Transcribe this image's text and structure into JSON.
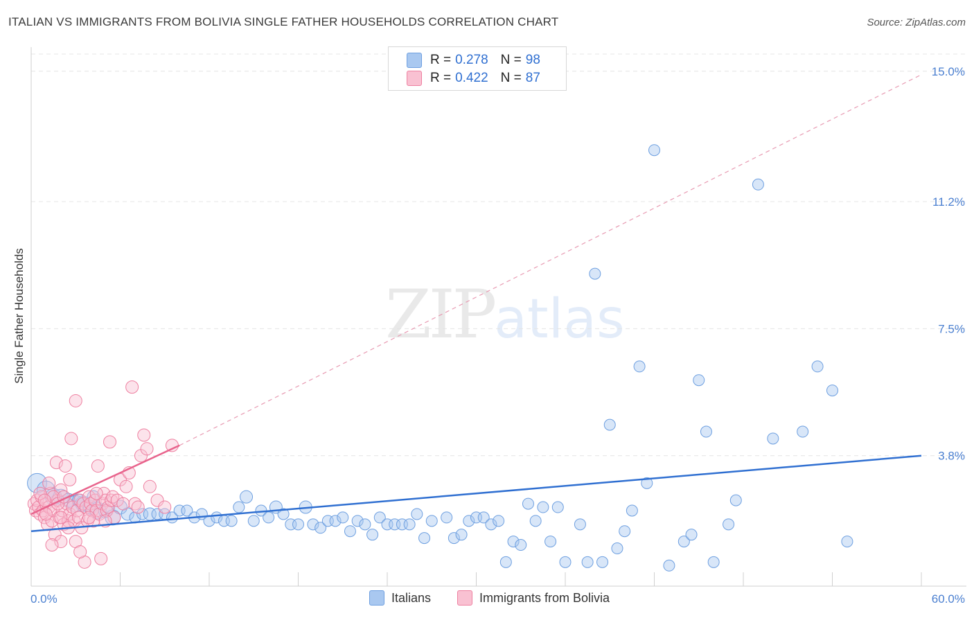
{
  "chart_data": {
    "type": "scatter",
    "title": "ITALIAN VS IMMIGRANTS FROM BOLIVIA SINGLE FATHER HOUSEHOLDS CORRELATION CHART",
    "source": "Source: ZipAtlas.com",
    "ylabel": "Single Father Households",
    "xlim": [
      0,
      60
    ],
    "ylim": [
      0,
      15.5
    ],
    "x_tick_labels": [
      "0.0%",
      "60.0%"
    ],
    "y_ticks": [
      3.8,
      7.5,
      11.2,
      15.0
    ],
    "y_tick_labels": [
      "3.8%",
      "7.5%",
      "11.2%",
      "15.0%"
    ],
    "grid": true,
    "watermark": "ZIPatlas",
    "legend": [
      {
        "name": "Italians",
        "r_label": "R =",
        "r": "0.278",
        "n_label": "N =",
        "n": "98",
        "color": "#a9c8f0",
        "stroke": "#6d9fe0"
      },
      {
        "name": "Immigrants from Bolivia",
        "r_label": "R =",
        "r": "0.422",
        "n_label": "N =",
        "n": "87",
        "color": "#f9c1d2",
        "stroke": "#ee7fa0"
      }
    ],
    "series": [
      {
        "name": "Italians",
        "color": "#a9c8f0",
        "stroke": "#6d9fe0",
        "trend": {
          "x1": 0,
          "y1": 1.6,
          "x2": 60,
          "y2": 3.8,
          "color": "#2f6fd1",
          "dashed": false
        },
        "points": [
          [
            0.4,
            3.0,
            14
          ],
          [
            1.0,
            2.8,
            13
          ],
          [
            1.5,
            2.6,
            12
          ],
          [
            2.0,
            2.6,
            11
          ],
          [
            2.5,
            2.5,
            10
          ],
          [
            3.0,
            2.4,
            12
          ],
          [
            3.5,
            2.4,
            11
          ],
          [
            4.0,
            2.3,
            10
          ],
          [
            4.5,
            2.2,
            12
          ],
          [
            5.0,
            2.2,
            10
          ],
          [
            5.5,
            2.0,
            11
          ],
          [
            6.0,
            2.3,
            10
          ],
          [
            6.5,
            2.1,
            9
          ],
          [
            7.0,
            2.0,
            8
          ],
          [
            7.5,
            2.1,
            8
          ],
          [
            8.0,
            2.1,
            9
          ],
          [
            8.5,
            2.1,
            8
          ],
          [
            9.0,
            2.1,
            8
          ],
          [
            9.5,
            2.0,
            8
          ],
          [
            10.0,
            2.2,
            8
          ],
          [
            10.5,
            2.2,
            8
          ],
          [
            11.0,
            2.0,
            8
          ],
          [
            11.5,
            2.1,
            8
          ],
          [
            12.0,
            1.9,
            8
          ],
          [
            12.5,
            2.0,
            8
          ],
          [
            13.0,
            1.9,
            8
          ],
          [
            13.5,
            1.9,
            8
          ],
          [
            14.0,
            2.3,
            8
          ],
          [
            14.5,
            2.6,
            9
          ],
          [
            15.0,
            1.9,
            8
          ],
          [
            15.5,
            2.2,
            8
          ],
          [
            16.0,
            2.0,
            8
          ],
          [
            16.5,
            2.3,
            9
          ],
          [
            17.0,
            2.1,
            8
          ],
          [
            17.5,
            1.8,
            8
          ],
          [
            18.0,
            1.8,
            8
          ],
          [
            18.5,
            2.3,
            9
          ],
          [
            19.0,
            1.8,
            8
          ],
          [
            19.5,
            1.7,
            8
          ],
          [
            20.0,
            1.9,
            8
          ],
          [
            20.5,
            1.9,
            8
          ],
          [
            21.0,
            2.0,
            8
          ],
          [
            21.5,
            1.6,
            8
          ],
          [
            22.0,
            1.9,
            8
          ],
          [
            22.5,
            1.8,
            8
          ],
          [
            23.0,
            1.5,
            8
          ],
          [
            23.5,
            2.0,
            8
          ],
          [
            24.0,
            1.8,
            8
          ],
          [
            24.5,
            1.8,
            8
          ],
          [
            25.0,
            1.8,
            8
          ],
          [
            25.5,
            1.8,
            8
          ],
          [
            26.0,
            2.1,
            8
          ],
          [
            26.5,
            1.4,
            8
          ],
          [
            27.0,
            1.9,
            8
          ],
          [
            28.0,
            2.0,
            8
          ],
          [
            28.5,
            1.4,
            8
          ],
          [
            29.0,
            1.5,
            8
          ],
          [
            29.5,
            1.9,
            8
          ],
          [
            30.0,
            2.0,
            8
          ],
          [
            30.5,
            2.0,
            8
          ],
          [
            31.0,
            1.8,
            8
          ],
          [
            31.5,
            1.9,
            8
          ],
          [
            32.0,
            0.7,
            8
          ],
          [
            32.5,
            1.3,
            8
          ],
          [
            33.0,
            1.2,
            8
          ],
          [
            33.5,
            2.4,
            8
          ],
          [
            34.0,
            1.9,
            8
          ],
          [
            34.5,
            2.3,
            8
          ],
          [
            35.0,
            1.3,
            8
          ],
          [
            35.5,
            2.3,
            8
          ],
          [
            36.0,
            0.7,
            8
          ],
          [
            37.0,
            1.8,
            8
          ],
          [
            37.5,
            0.7,
            8
          ],
          [
            38.0,
            9.1,
            8
          ],
          [
            38.5,
            0.7,
            8
          ],
          [
            39.0,
            4.7,
            8
          ],
          [
            39.5,
            1.1,
            8
          ],
          [
            40.0,
            1.6,
            8
          ],
          [
            40.5,
            2.2,
            8
          ],
          [
            41.0,
            6.4,
            8
          ],
          [
            41.5,
            3.0,
            8
          ],
          [
            42.0,
            12.7,
            8
          ],
          [
            43.0,
            0.6,
            8
          ],
          [
            44.0,
            1.3,
            8
          ],
          [
            44.5,
            1.5,
            8
          ],
          [
            45.0,
            6.0,
            8
          ],
          [
            45.5,
            4.5,
            8
          ],
          [
            46.0,
            0.7,
            8
          ],
          [
            47.0,
            1.8,
            8
          ],
          [
            47.5,
            2.5,
            8
          ],
          [
            49.0,
            11.7,
            8
          ],
          [
            50.0,
            4.3,
            8
          ],
          [
            52.0,
            4.5,
            8
          ],
          [
            53.0,
            6.4,
            8
          ],
          [
            54.0,
            5.7,
            8
          ],
          [
            55.0,
            1.3,
            8
          ],
          [
            3.2,
            2.5,
            9
          ],
          [
            4.2,
            2.6,
            9
          ]
        ]
      },
      {
        "name": "Immigrants from Bolivia",
        "color": "#f9c1d2",
        "stroke": "#ee7fa0",
        "trend_solid": {
          "x1": 0,
          "y1": 2.1,
          "x2": 10,
          "y2": 4.1,
          "color": "#e8638c"
        },
        "trend_dashed": {
          "x1": 10,
          "y1": 4.1,
          "x2": 60,
          "y2": 14.9,
          "color": "#e89ab2"
        },
        "points": [
          [
            0.2,
            2.4,
            9
          ],
          [
            0.3,
            2.2,
            9
          ],
          [
            0.4,
            2.5,
            9
          ],
          [
            0.5,
            2.3,
            9
          ],
          [
            0.6,
            2.1,
            9
          ],
          [
            0.7,
            2.6,
            9
          ],
          [
            0.8,
            2.2,
            9
          ],
          [
            0.9,
            2.0,
            9
          ],
          [
            1.0,
            2.4,
            9
          ],
          [
            1.1,
            1.8,
            9
          ],
          [
            1.2,
            2.3,
            9
          ],
          [
            1.3,
            2.7,
            9
          ],
          [
            1.4,
            1.9,
            9
          ],
          [
            1.5,
            2.2,
            9
          ],
          [
            1.6,
            1.5,
            9
          ],
          [
            1.7,
            3.6,
            9
          ],
          [
            1.8,
            2.5,
            9
          ],
          [
            1.9,
            2.0,
            9
          ],
          [
            2.0,
            2.8,
            9
          ],
          [
            2.1,
            2.2,
            9
          ],
          [
            2.2,
            1.8,
            9
          ],
          [
            2.3,
            3.5,
            9
          ],
          [
            2.4,
            2.4,
            9
          ],
          [
            2.5,
            1.9,
            9
          ],
          [
            2.6,
            2.1,
            9
          ],
          [
            2.7,
            4.3,
            9
          ],
          [
            2.8,
            2.3,
            9
          ],
          [
            2.9,
            1.9,
            9
          ],
          [
            3.0,
            5.4,
            9
          ],
          [
            3.1,
            2.2,
            9
          ],
          [
            3.2,
            2.0,
            9
          ],
          [
            3.3,
            2.5,
            9
          ],
          [
            3.4,
            1.7,
            9
          ],
          [
            3.5,
            2.4,
            9
          ],
          [
            3.6,
            0.7,
            9
          ],
          [
            3.7,
            2.3,
            9
          ],
          [
            3.8,
            1.9,
            9
          ],
          [
            3.9,
            2.6,
            9
          ],
          [
            4.0,
            2.4,
            9
          ],
          [
            4.1,
            2.2,
            9
          ],
          [
            4.2,
            1.9,
            9
          ],
          [
            4.3,
            2.5,
            9
          ],
          [
            4.4,
            2.2,
            9
          ],
          [
            4.5,
            3.5,
            9
          ],
          [
            4.6,
            2.1,
            9
          ],
          [
            4.7,
            0.8,
            9
          ],
          [
            4.8,
            2.4,
            9
          ],
          [
            4.9,
            2.7,
            9
          ],
          [
            5.0,
            2.5,
            9
          ],
          [
            5.1,
            2.2,
            9
          ],
          [
            5.2,
            2.3,
            9
          ],
          [
            5.3,
            4.2,
            9
          ],
          [
            5.4,
            2.5,
            9
          ],
          [
            5.5,
            2.6,
            9
          ],
          [
            5.6,
            2.0,
            9
          ],
          [
            5.8,
            2.5,
            9
          ],
          [
            6.0,
            3.1,
            9
          ],
          [
            6.2,
            2.4,
            9
          ],
          [
            6.4,
            2.9,
            9
          ],
          [
            6.6,
            3.3,
            9
          ],
          [
            6.8,
            5.8,
            9
          ],
          [
            7.0,
            2.4,
            9
          ],
          [
            7.2,
            2.3,
            9
          ],
          [
            7.4,
            3.8,
            9
          ],
          [
            7.6,
            4.4,
            9
          ],
          [
            7.8,
            4.0,
            9
          ],
          [
            8.0,
            2.9,
            9
          ],
          [
            8.5,
            2.5,
            9
          ],
          [
            9.0,
            2.3,
            9
          ],
          [
            9.5,
            4.1,
            9
          ],
          [
            1.0,
            2.1,
            9
          ],
          [
            1.5,
            2.6,
            9
          ],
          [
            2.0,
            2.0,
            9
          ],
          [
            2.5,
            1.7,
            9
          ],
          [
            0.6,
            2.7,
            9
          ],
          [
            0.9,
            2.5,
            9
          ],
          [
            1.2,
            3.0,
            9
          ],
          [
            1.8,
            2.4,
            9
          ],
          [
            2.2,
            2.6,
            9
          ],
          [
            2.6,
            3.1,
            9
          ],
          [
            3.0,
            1.3,
            9
          ],
          [
            2.0,
            1.3,
            9
          ],
          [
            1.4,
            1.2,
            9
          ],
          [
            3.3,
            1.0,
            9
          ],
          [
            3.9,
            2.0,
            9
          ],
          [
            4.4,
            2.7,
            9
          ],
          [
            5.0,
            1.9,
            9
          ]
        ]
      }
    ]
  }
}
